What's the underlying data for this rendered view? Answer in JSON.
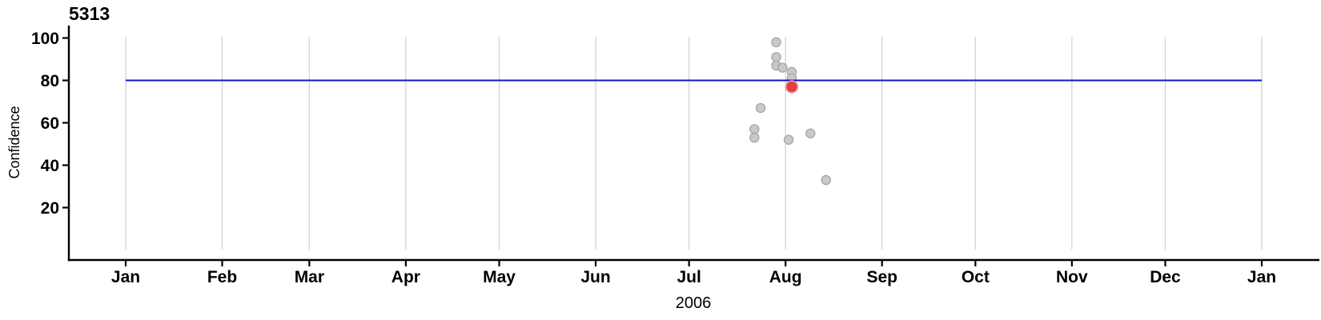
{
  "chart_data": {
    "type": "scatter",
    "title": "5313",
    "xlabel": "2006",
    "ylabel": "Confidence",
    "x_axis": {
      "unit": "day_of_year",
      "range_days": [
        0,
        365
      ],
      "ticks": [
        {
          "label": "Jan",
          "day": 0
        },
        {
          "label": "Feb",
          "day": 31
        },
        {
          "label": "Mar",
          "day": 59
        },
        {
          "label": "Apr",
          "day": 90
        },
        {
          "label": "May",
          "day": 120
        },
        {
          "label": "Jun",
          "day": 151
        },
        {
          "label": "Jul",
          "day": 181
        },
        {
          "label": "Aug",
          "day": 212
        },
        {
          "label": "Sep",
          "day": 243
        },
        {
          "label": "Oct",
          "day": 273
        },
        {
          "label": "Nov",
          "day": 304
        },
        {
          "label": "Dec",
          "day": 334
        },
        {
          "label": "Jan",
          "day": 365
        }
      ]
    },
    "y_axis": {
      "label": "Confidence",
      "ticks": [
        20,
        40,
        60,
        80,
        100
      ],
      "range": [
        0,
        107
      ]
    },
    "grid": true,
    "legend": "none",
    "reference_line": {
      "value": 80
    },
    "points": [
      {
        "date": "Jul 28",
        "day": 209,
        "value": 98
      },
      {
        "date": "Jul 28",
        "day": 209,
        "value": 91
      },
      {
        "date": "Jul 28",
        "day": 209,
        "value": 87
      },
      {
        "date": "Jul 30",
        "day": 211,
        "value": 86
      },
      {
        "date": "Aug 2",
        "day": 214,
        "value": 84
      },
      {
        "date": "Aug 2",
        "day": 214,
        "value": 81
      },
      {
        "date": "Jul 23",
        "day": 204,
        "value": 67
      },
      {
        "date": "Jul 21",
        "day": 202,
        "value": 57
      },
      {
        "date": "Jul 21",
        "day": 202,
        "value": 53
      },
      {
        "date": "Aug 1",
        "day": 213,
        "value": 52
      },
      {
        "date": "Aug 8",
        "day": 220,
        "value": 55
      },
      {
        "date": "Aug 13",
        "day": 225,
        "value": 33
      }
    ],
    "highlighted_point": {
      "date": "Aug 2",
      "day": 214,
      "value": 77
    },
    "colors": {
      "point_fill": "#c9c9c9",
      "point_stroke": "#a6a6a6",
      "highlight_fill": "#e5403f",
      "highlight_core_stroke": "#d53535",
      "highlight_ring": "#f09092",
      "reference_line": "#1212cd",
      "grid": "#d3d3d3",
      "axis": "#000000"
    }
  }
}
